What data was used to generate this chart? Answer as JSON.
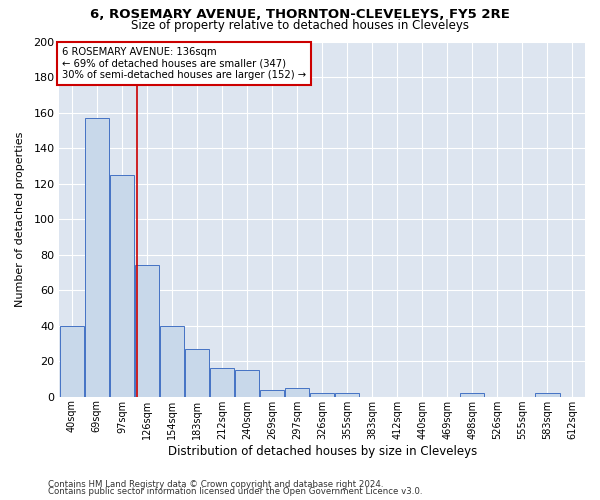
{
  "title1": "6, ROSEMARY AVENUE, THORNTON-CLEVELEYS, FY5 2RE",
  "title2": "Size of property relative to detached houses in Cleveleys",
  "xlabel": "Distribution of detached houses by size in Cleveleys",
  "ylabel": "Number of detached properties",
  "footnote1": "Contains HM Land Registry data © Crown copyright and database right 2024.",
  "footnote2": "Contains public sector information licensed under the Open Government Licence v3.0.",
  "bar_labels": [
    "40sqm",
    "69sqm",
    "97sqm",
    "126sqm",
    "154sqm",
    "183sqm",
    "212sqm",
    "240sqm",
    "269sqm",
    "297sqm",
    "326sqm",
    "355sqm",
    "383sqm",
    "412sqm",
    "440sqm",
    "469sqm",
    "498sqm",
    "526sqm",
    "555sqm",
    "583sqm",
    "612sqm"
  ],
  "bar_values": [
    40,
    157,
    125,
    74,
    40,
    27,
    16,
    15,
    4,
    5,
    2,
    2,
    0,
    0,
    0,
    0,
    2,
    0,
    0,
    2,
    0
  ],
  "bar_color": "#c8d8ea",
  "bar_edge_color": "#4472c4",
  "background_color": "#dde5f0",
  "grid_color": "#ffffff",
  "fig_background": "#ffffff",
  "annotation_text": "6 ROSEMARY AVENUE: 136sqm\n← 69% of detached houses are smaller (347)\n30% of semi-detached houses are larger (152) →",
  "annotation_box_color": "#ffffff",
  "annotation_box_edge": "#cc0000",
  "vline_x": 2.62,
  "vline_color": "#cc0000",
  "ylim": [
    0,
    200
  ],
  "yticks": [
    0,
    20,
    40,
    60,
    80,
    100,
    120,
    140,
    160,
    180,
    200
  ]
}
